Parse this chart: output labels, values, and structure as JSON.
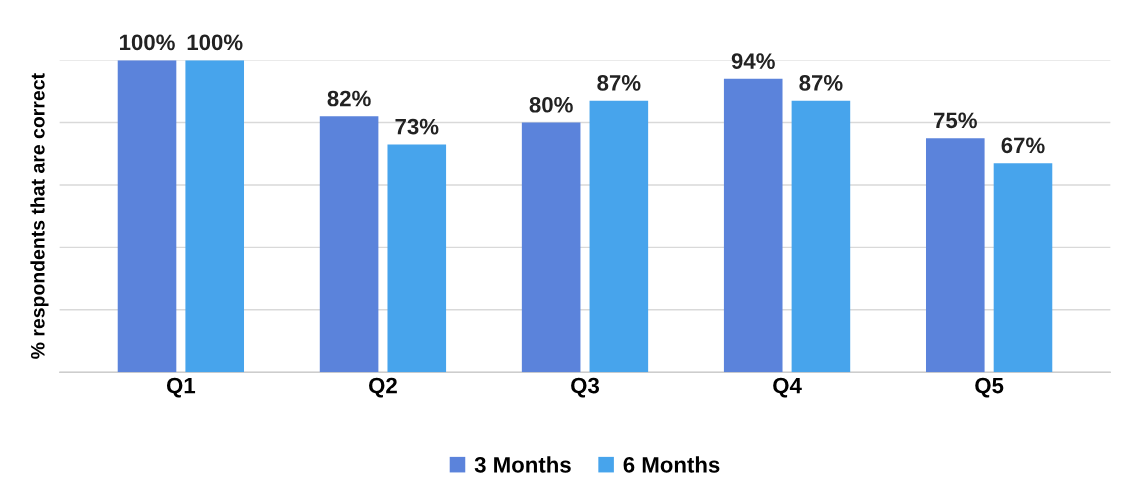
{
  "chart_data": {
    "type": "bar",
    "ylabel": "% respondents that are correct",
    "categories": [
      "Q1",
      "Q2",
      "Q3",
      "Q4",
      "Q5"
    ],
    "series": [
      {
        "name": "3 Months",
        "color": "#5b83db",
        "values": [
          100,
          82,
          80,
          94,
          75
        ],
        "value_labels": [
          "100%",
          "82%",
          "80%",
          "94%",
          "75%"
        ]
      },
      {
        "name": "6 Months",
        "color": "#47a4ec",
        "values": [
          100,
          73,
          87,
          87,
          67
        ],
        "value_labels": [
          "100%",
          "73%",
          "87%",
          "87%",
          "67%"
        ]
      }
    ],
    "tick_labels": "x",
    "grid": "y",
    "legend": "bottom"
  }
}
